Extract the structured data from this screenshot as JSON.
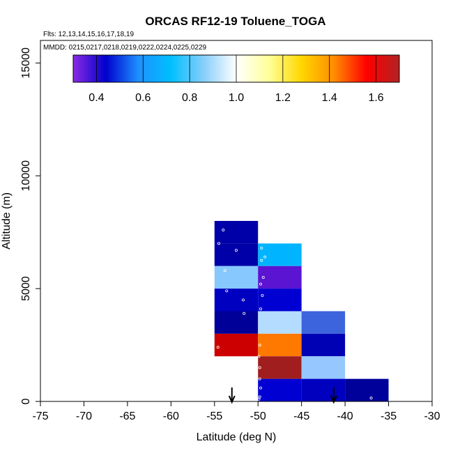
{
  "chart_data": {
    "type": "heatmap",
    "title": "ORCAS RF12-19 Toluene_TOGA",
    "flights_note": "Flts: 12,13,14,15,16,17,18,19",
    "dates_note": "MMDD: 0215,0217,0218,0219,0222,0224,0225,0229",
    "xlabel": "Latitude (deg N)",
    "ylabel": "Altitude (m)",
    "xlim": [
      -75,
      -30
    ],
    "ylim": [
      0,
      16000
    ],
    "xticks": [
      "-75",
      "-70",
      "-65",
      "-60",
      "-55",
      "-50",
      "-45",
      "-40",
      "-35",
      "-30"
    ],
    "yticks": [
      "0",
      "5000",
      "10000",
      "15000"
    ],
    "colorbar": {
      "range": [
        0.3,
        1.7
      ],
      "ticks": [
        "0.4",
        "0.6",
        "0.8",
        "1.0",
        "1.2",
        "1.4",
        "1.6"
      ],
      "stops": [
        "#8a2be2",
        "#0000cd",
        "#1e90ff",
        "#00bfff",
        "#87cefa",
        "#ffffff",
        "#ffff99",
        "#ffd700",
        "#ff8c00",
        "#ff0000",
        "#b22222"
      ]
    },
    "cells": [
      {
        "lat_min": -55,
        "lat_max": -50,
        "alt_min": 7000,
        "alt_max": 8000,
        "color": "#0000a8"
      },
      {
        "lat_min": -55,
        "lat_max": -50,
        "alt_min": 6000,
        "alt_max": 7000,
        "color": "#0000a8"
      },
      {
        "lat_min": -55,
        "lat_max": -50,
        "alt_min": 5000,
        "alt_max": 6000,
        "color": "#87c8ff"
      },
      {
        "lat_min": -55,
        "lat_max": -50,
        "alt_min": 4000,
        "alt_max": 5000,
        "color": "#0000c0"
      },
      {
        "lat_min": -55,
        "lat_max": -50,
        "alt_min": 3000,
        "alt_max": 4000,
        "color": "#000099"
      },
      {
        "lat_min": -55,
        "lat_max": -50,
        "alt_min": 2000,
        "alt_max": 3000,
        "color": "#cc0000"
      },
      {
        "lat_min": -50,
        "lat_max": -45,
        "alt_min": 6000,
        "alt_max": 7000,
        "color": "#00b4ff"
      },
      {
        "lat_min": -50,
        "lat_max": -45,
        "alt_min": 5000,
        "alt_max": 6000,
        "color": "#5a14d2"
      },
      {
        "lat_min": -50,
        "lat_max": -45,
        "alt_min": 4000,
        "alt_max": 5000,
        "color": "#0000d2"
      },
      {
        "lat_min": -50,
        "lat_max": -45,
        "alt_min": 3000,
        "alt_max": 4000,
        "color": "#b4dcff"
      },
      {
        "lat_min": -50,
        "lat_max": -45,
        "alt_min": 2000,
        "alt_max": 3000,
        "color": "#ff7800"
      },
      {
        "lat_min": -50,
        "lat_max": -45,
        "alt_min": 1000,
        "alt_max": 2000,
        "color": "#a01e1e"
      },
      {
        "lat_min": -50,
        "lat_max": -45,
        "alt_min": 0,
        "alt_max": 1000,
        "color": "#0000d2"
      },
      {
        "lat_min": -45,
        "lat_max": -40,
        "alt_min": 3000,
        "alt_max": 4000,
        "color": "#3c64dc"
      },
      {
        "lat_min": -45,
        "lat_max": -40,
        "alt_min": 2000,
        "alt_max": 3000,
        "color": "#0000b4"
      },
      {
        "lat_min": -45,
        "lat_max": -40,
        "alt_min": 1000,
        "alt_max": 2000,
        "color": "#96c8ff"
      },
      {
        "lat_min": -45,
        "lat_max": -40,
        "alt_min": 0,
        "alt_max": 1000,
        "color": "#0000be"
      },
      {
        "lat_min": -40,
        "lat_max": -35,
        "alt_min": 0,
        "alt_max": 1000,
        "color": "#00009a"
      }
    ],
    "samples": [
      [
        -54.0,
        7600
      ],
      [
        -54.5,
        7000
      ],
      [
        -52.5,
        6700
      ],
      [
        -53.8,
        5800
      ],
      [
        -53.6,
        4900
      ],
      [
        -51.7,
        4500
      ],
      [
        -51.6,
        3900
      ],
      [
        -54.6,
        2400
      ],
      [
        -49.6,
        6800
      ],
      [
        -49.2,
        6400
      ],
      [
        -49.6,
        6250
      ],
      [
        -49.4,
        5500
      ],
      [
        -49.7,
        5200
      ],
      [
        -49.5,
        4700
      ],
      [
        -49.7,
        4100
      ],
      [
        -49.8,
        2500
      ],
      [
        -49.9,
        2000
      ],
      [
        -49.8,
        1500
      ],
      [
        -49.8,
        1000
      ],
      [
        -49.7,
        600
      ],
      [
        -49.8,
        200
      ],
      [
        -49.9,
        100
      ],
      [
        -37.0,
        150
      ]
    ],
    "arrows_lat": [
      -53.0,
      -41.3
    ]
  }
}
